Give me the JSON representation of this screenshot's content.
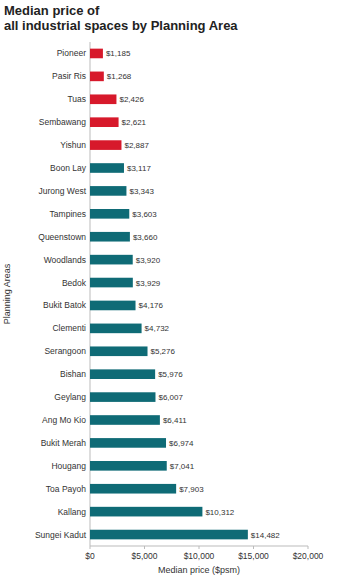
{
  "chart_data": {
    "type": "bar",
    "orientation": "horizontal",
    "title": "Median price of\nall industrial spaces by Planning Area",
    "x_label": "Median price ($psm)",
    "y_label": "Planning Areas",
    "categories": [
      "Pioneer",
      "Pasir Ris",
      "Tuas",
      "Sembawang",
      "Yishun",
      "Boon Lay",
      "Jurong West",
      "Tampines",
      "Queenstown",
      "Woodlands",
      "Bedok",
      "Bukit Batok",
      "Clementi",
      "Serangoon",
      "Bishan",
      "Geylang",
      "Ang Mo Kio",
      "Bukit Merah",
      "Hougang",
      "Toa Payoh",
      "Kallang",
      "Sungei Kadut"
    ],
    "values": [
      1185,
      1268,
      2426,
      2621,
      2887,
      3117,
      3343,
      3603,
      3660,
      3920,
      3929,
      4176,
      4732,
      5276,
      5976,
      6007,
      6411,
      6974,
      7041,
      7903,
      10312,
      14482
    ],
    "value_labels": [
      "$1,185",
      "$1,268",
      "$2,426",
      "$2,621",
      "$2,887",
      "$3,117",
      "$3,343",
      "$3,603",
      "$3,660",
      "$3,920",
      "$3,929",
      "$4,176",
      "$4,732",
      "$5,276",
      "$5,976",
      "$6,007",
      "$6,411",
      "$6,974",
      "$7,041",
      "$7,903",
      "$10,312",
      "$14,482"
    ],
    "colors": [
      "#d7192b",
      "#d7192b",
      "#d7192b",
      "#d7192b",
      "#d7192b",
      "#0f6b76",
      "#0f6b76",
      "#0f6b76",
      "#0f6b76",
      "#0f6b76",
      "#0f6b76",
      "#0f6b76",
      "#0f6b76",
      "#0f6b76",
      "#0f6b76",
      "#0f6b76",
      "#0f6b76",
      "#0f6b76",
      "#0f6b76",
      "#0f6b76",
      "#0f6b76",
      "#0f6b76"
    ],
    "xlim": [
      0,
      20000
    ],
    "xticks": [
      {
        "value": 0,
        "label": "$0"
      },
      {
        "value": 5000,
        "label": "$5,000"
      },
      {
        "value": 10000,
        "label": "$10,000"
      },
      {
        "value": 15000,
        "label": "$15,000"
      },
      {
        "value": 20000,
        "label": "$20,000"
      }
    ],
    "grid": false,
    "data_labels": true
  }
}
